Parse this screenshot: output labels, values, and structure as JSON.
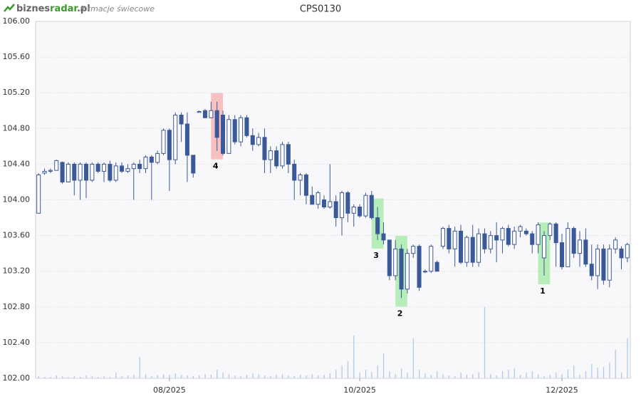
{
  "header": {
    "logo": [
      "biznes",
      "radar",
      ".pl"
    ],
    "subtitle": "formacje świecowe"
  },
  "chart_data": {
    "type": "candlestick",
    "title": "CPS0130",
    "categories": [
      null,
      null,
      null,
      null,
      null,
      null,
      null,
      null,
      null,
      null,
      null,
      null,
      null,
      null,
      null,
      null,
      null,
      null,
      null,
      null,
      null,
      null,
      "08/2025",
      null,
      null,
      null,
      null,
      null,
      null,
      null,
      null,
      null,
      null,
      null,
      null,
      null,
      null,
      null,
      null,
      null,
      null,
      null,
      null,
      null,
      null,
      null,
      null,
      null,
      null,
      null,
      null,
      null,
      null,
      null,
      "10/2025",
      null,
      null,
      null,
      null,
      null,
      null,
      null,
      null,
      null,
      null,
      null,
      null,
      null,
      null,
      null,
      null,
      null,
      null,
      null,
      null,
      null,
      null,
      null,
      null,
      null,
      null,
      null,
      null,
      null,
      null,
      null,
      null,
      null,
      "12/2025",
      null,
      null,
      null,
      null,
      null,
      null,
      null,
      null,
      null,
      null,
      null
    ],
    "open": [
      103.85,
      104.3,
      104.32,
      104.33,
      104.42,
      104.2,
      104.4,
      104.22,
      104.4,
      104.22,
      104.4,
      104.32,
      104.4,
      104.22,
      104.38,
      104.32,
      104.35,
      104.4,
      104.35,
      104.48,
      104.42,
      104.52,
      104.78,
      104.45,
      104.95,
      104.85,
      104.5,
      104.98,
      105.0,
      104.92,
      105.0,
      104.95,
      104.52,
      104.9,
      104.65,
      104.92,
      104.72,
      104.62,
      104.7,
      104.45,
      104.55,
      104.38,
      104.62,
      104.4,
      104.22,
      104.28,
      104.05,
      103.95,
      104.0,
      103.92,
      103.98,
      103.8,
      104.08,
      103.85,
      103.92,
      103.82,
      104.05,
      103.8,
      103.62,
      103.55,
      103.15,
      103.45,
      103.0,
      103.4,
      103.48,
      103.2,
      103.2,
      103.3,
      103.48,
      103.68,
      103.45,
      103.65,
      103.3,
      103.58,
      103.3,
      103.62,
      103.45,
      103.6,
      103.55,
      103.68,
      103.5,
      103.65,
      103.65,
      103.62,
      103.5,
      103.35,
      103.6,
      103.73,
      103.52,
      103.25,
      103.68,
      103.4,
      103.55,
      103.28,
      103.15,
      103.45,
      103.1,
      103.45,
      103.45,
      103.35
    ],
    "high": [
      104.3,
      104.35,
      104.35,
      104.45,
      104.43,
      104.42,
      104.42,
      104.42,
      104.42,
      104.42,
      104.42,
      104.42,
      104.44,
      104.42,
      104.42,
      104.4,
      104.42,
      104.45,
      104.5,
      104.5,
      104.55,
      104.8,
      104.8,
      104.98,
      104.98,
      104.98,
      104.5,
      105.0,
      105.02,
      105.1,
      105.1,
      105.0,
      104.95,
      104.95,
      104.95,
      104.95,
      104.8,
      104.75,
      104.8,
      104.6,
      104.6,
      104.65,
      104.65,
      104.45,
      104.3,
      104.3,
      104.15,
      104.1,
      104.05,
      104.4,
      104.05,
      104.1,
      104.1,
      103.95,
      103.95,
      104.08,
      104.1,
      103.92,
      103.75,
      103.55,
      103.55,
      103.5,
      103.45,
      103.5,
      103.5,
      103.22,
      103.5,
      103.32,
      103.7,
      103.72,
      103.7,
      103.72,
      103.6,
      103.72,
      103.68,
      103.68,
      103.65,
      103.75,
      103.7,
      103.72,
      103.7,
      103.72,
      103.68,
      103.65,
      103.75,
      103.65,
      103.75,
      103.75,
      103.62,
      103.75,
      103.7,
      103.65,
      103.68,
      103.5,
      103.5,
      103.5,
      103.5,
      103.58,
      103.48,
      103.52
    ],
    "low": [
      103.85,
      104.28,
      104.3,
      104.33,
      104.18,
      104.2,
      104.05,
      104.0,
      104.02,
      104.2,
      104.3,
      104.2,
      104.2,
      104.2,
      104.3,
      104.3,
      104.0,
      104.3,
      104.3,
      104.0,
      104.4,
      104.5,
      104.1,
      104.4,
      104.65,
      104.2,
      104.25,
      104.98,
      104.92,
      104.92,
      104.55,
      104.5,
      104.52,
      104.62,
      104.6,
      104.7,
      104.55,
      104.6,
      104.3,
      104.3,
      104.35,
      104.35,
      104.3,
      104.0,
      104.05,
      103.95,
      103.95,
      103.9,
      103.9,
      103.9,
      103.7,
      103.6,
      103.75,
      103.7,
      103.8,
      103.8,
      103.78,
      103.55,
      103.5,
      103.1,
      103.1,
      102.9,
      102.95,
      103.35,
      102.98,
      103.18,
      103.18,
      103.2,
      103.45,
      103.4,
      103.25,
      103.28,
      103.25,
      103.25,
      103.25,
      103.4,
      103.4,
      103.3,
      103.4,
      103.48,
      103.45,
      103.58,
      103.6,
      103.4,
      103.4,
      103.15,
      103.55,
      103.25,
      103.22,
      103.25,
      103.35,
      103.25,
      103.25,
      103.1,
      103.0,
      103.05,
      103.02,
      103.4,
      103.22,
      103.3
    ],
    "close": [
      104.28,
      104.32,
      104.33,
      104.44,
      104.2,
      104.4,
      104.22,
      104.4,
      104.22,
      104.4,
      104.32,
      104.4,
      104.22,
      104.38,
      104.32,
      104.35,
      104.4,
      104.35,
      104.48,
      104.42,
      104.52,
      104.78,
      104.45,
      104.95,
      104.85,
      104.5,
      104.3,
      104.99,
      104.92,
      105.0,
      104.7,
      104.52,
      104.9,
      104.65,
      104.92,
      104.72,
      104.62,
      104.7,
      104.45,
      104.55,
      104.38,
      104.62,
      104.4,
      104.22,
      104.28,
      104.05,
      103.95,
      104.08,
      103.92,
      103.98,
      103.8,
      104.08,
      103.85,
      103.92,
      103.82,
      104.05,
      103.8,
      103.62,
      103.55,
      103.15,
      103.45,
      103.0,
      103.4,
      103.48,
      103.02,
      103.2,
      103.48,
      103.2,
      103.68,
      103.45,
      103.65,
      103.3,
      103.58,
      103.3,
      103.62,
      103.45,
      103.6,
      103.55,
      103.68,
      103.5,
      103.65,
      103.7,
      103.62,
      103.5,
      103.72,
      103.6,
      103.73,
      103.52,
      103.25,
      103.68,
      103.4,
      103.55,
      103.28,
      103.15,
      103.45,
      103.1,
      103.45,
      103.55,
      103.35,
      103.5
    ],
    "volume": [
      3,
      2,
      2,
      4,
      3,
      2,
      3,
      2,
      4,
      3,
      2,
      3,
      2,
      8,
      3,
      4,
      5,
      30,
      6,
      3,
      4,
      6,
      5,
      7,
      5,
      4,
      3,
      4,
      6,
      5,
      12,
      8,
      6,
      4,
      3,
      5,
      7,
      6,
      4,
      3,
      5,
      6,
      4,
      3,
      5,
      4,
      6,
      4,
      5,
      7,
      12,
      18,
      24,
      60,
      8,
      12,
      9,
      18,
      35,
      10,
      6,
      14,
      8,
      56,
      12,
      7,
      5,
      10,
      6,
      4,
      3,
      8,
      5,
      6,
      9,
      100,
      6,
      4,
      10,
      12,
      14,
      5,
      8,
      10,
      6,
      3,
      5,
      8,
      6,
      12,
      18,
      5,
      10,
      20,
      15,
      16,
      22,
      40,
      8,
      56
    ],
    "ylim": [
      102,
      106
    ],
    "yticks": [
      {
        "value": 102,
        "label": "102.00"
      },
      {
        "value": 102.4,
        "label": "102.40"
      },
      {
        "value": 102.8,
        "label": "102.80"
      },
      {
        "value": 103.2,
        "label": "103.20"
      },
      {
        "value": 103.6,
        "label": "103.60"
      },
      {
        "value": 104,
        "label": "104.00"
      },
      {
        "value": 104.4,
        "label": "104.40"
      },
      {
        "value": 104.8,
        "label": "104.80"
      },
      {
        "value": 105.2,
        "label": "105.20"
      },
      {
        "value": 105.6,
        "label": "105.60"
      },
      {
        "value": 106,
        "label": "106.00"
      }
    ],
    "volume_ylim": [
      0,
      500
    ],
    "grid": true,
    "up_color": "#ffffff",
    "down_color": "#3b5998",
    "volume_color": "#a9c8ea",
    "patterns": [
      {
        "label": "4",
        "candle": 30,
        "color": "#f7a8a8"
      },
      {
        "label": "3",
        "candle": 57,
        "color": "#9be89b"
      },
      {
        "label": "2",
        "candle": 61,
        "color": "#9be89b"
      },
      {
        "label": "1",
        "candle": 85,
        "color": "#9be89b"
      }
    ]
  }
}
